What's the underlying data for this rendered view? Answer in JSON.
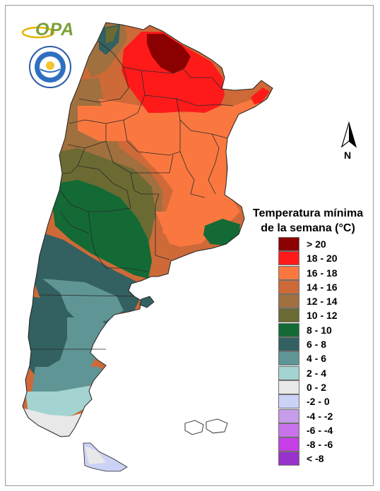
{
  "logo": {
    "text": "OPA"
  },
  "north_arrow": {
    "label": "N"
  },
  "legend": {
    "title_line1": "Temperatura mínima",
    "title_line2": "de la semana (°C)",
    "items": [
      {
        "label": "> 20",
        "color": "#8b0000"
      },
      {
        "label": "18 - 20",
        "color": "#ff1a1a"
      },
      {
        "label": "16 - 18",
        "color": "#fa7840"
      },
      {
        "label": "14 - 16",
        "color": "#cd6a38"
      },
      {
        "label": "12 - 14",
        "color": "#a0703e"
      },
      {
        "label": "10 - 12",
        "color": "#6b6a32"
      },
      {
        "label": "8 - 10",
        "color": "#136a35"
      },
      {
        "label": "6 - 8",
        "color": "#336060"
      },
      {
        "label": "4 - 6",
        "color": "#5f9595"
      },
      {
        "label": "2 - 4",
        "color": "#a3d4d1"
      },
      {
        "label": "0 - 2",
        "color": "#e8e8e8"
      },
      {
        "label": "-2 - 0",
        "color": "#cbd2f5"
      },
      {
        "label": "-4 - -2",
        "color": "#c69de8"
      },
      {
        "label": "-6 - -4",
        "color": "#c873ec"
      },
      {
        "label": "-8 - -6",
        "color": "#c63ee6"
      },
      {
        "label": "< -8",
        "color": "#9932cc"
      }
    ]
  }
}
